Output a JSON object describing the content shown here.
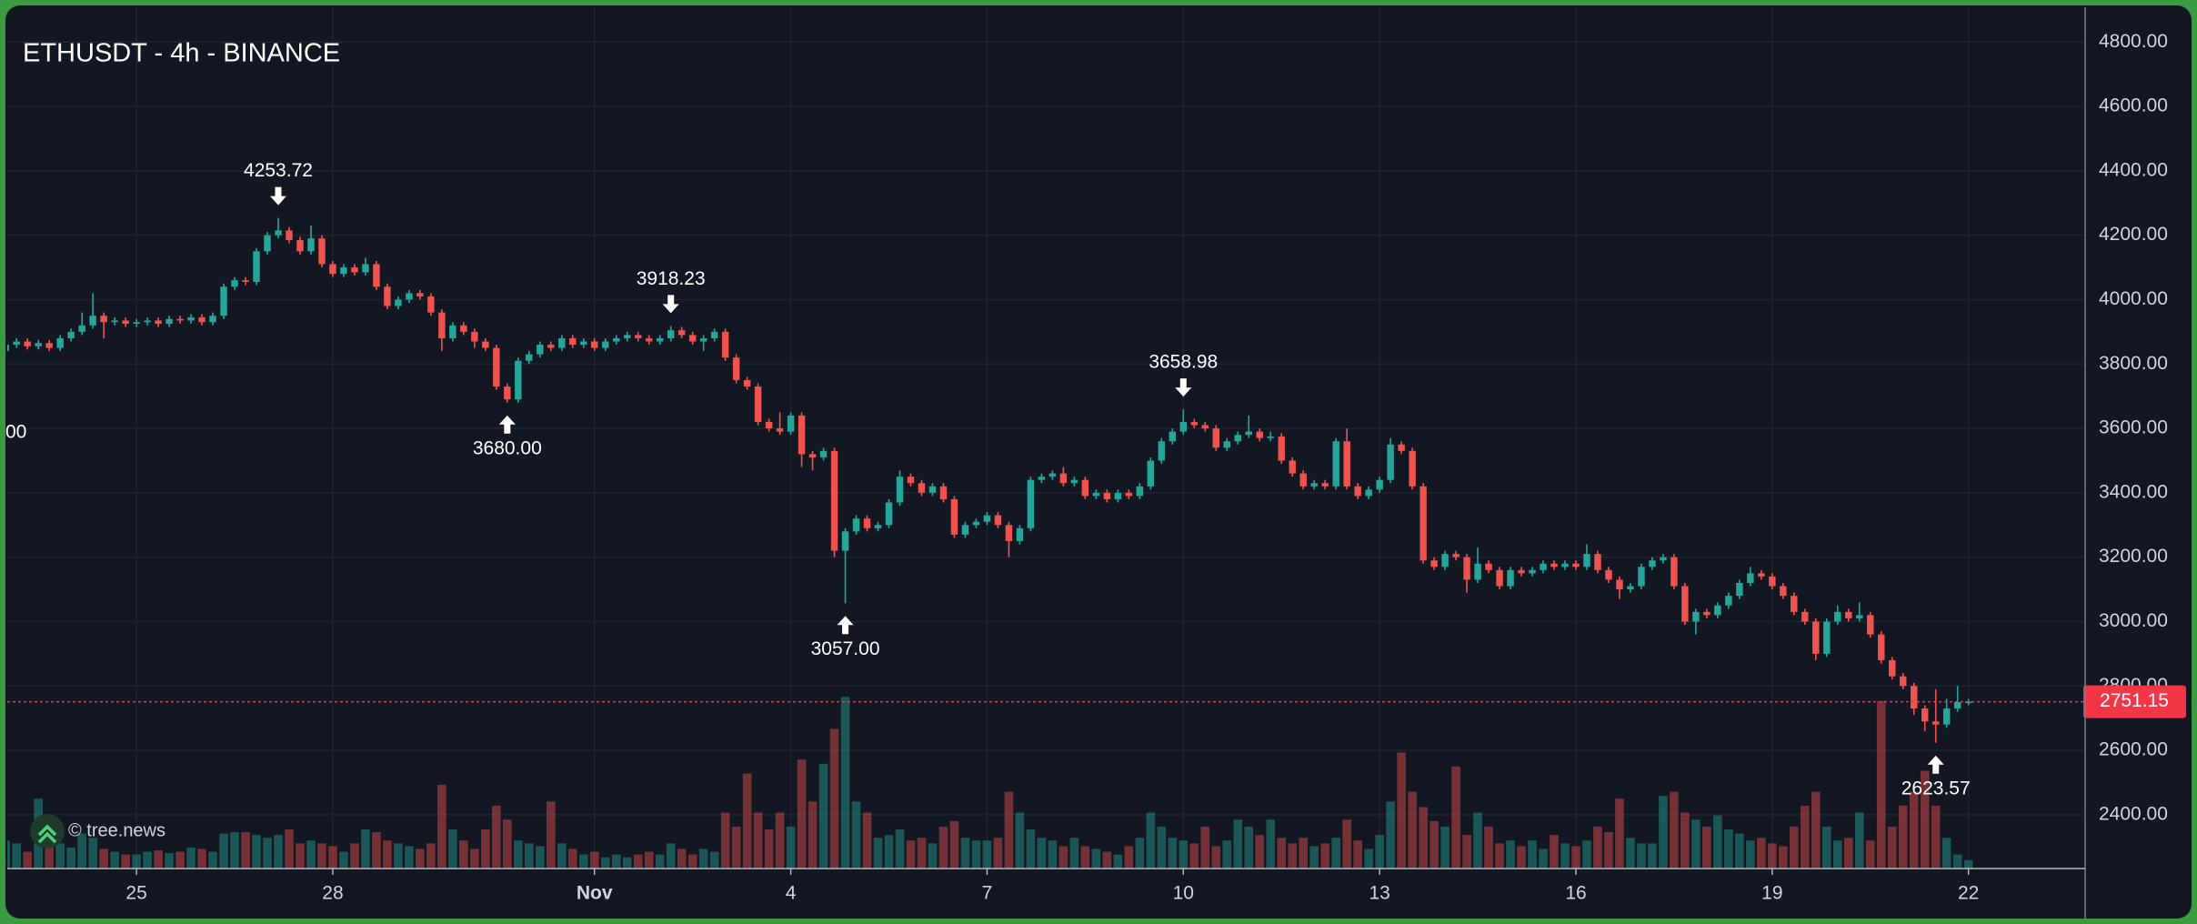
{
  "chart_data": {
    "type": "candlestick",
    "title": "ETHUSDT - 4h - BINANCE",
    "watermark": "© tree.news",
    "edge_label": "00",
    "up_color": "#26a69a",
    "down_color": "#ef5350",
    "grid": true,
    "xlim": [
      0.15,
      190.7
    ],
    "ylim": [
      2233,
      4908
    ],
    "vlim": [
      0,
      125
    ],
    "xticks": [
      {
        "value": 12,
        "label": "25"
      },
      {
        "value": 30,
        "label": "28"
      },
      {
        "value": 54,
        "label": "Nov"
      },
      {
        "value": 72,
        "label": "4"
      },
      {
        "value": 90,
        "label": "7"
      },
      {
        "value": 108,
        "label": "10"
      },
      {
        "value": 126,
        "label": "13"
      },
      {
        "value": 144,
        "label": "16"
      },
      {
        "value": 162,
        "label": "19"
      },
      {
        "value": 180,
        "label": "22"
      }
    ],
    "yticks": [
      {
        "value": 2400,
        "label": "2400.00"
      },
      {
        "value": 2600,
        "label": "2600.00"
      },
      {
        "value": 2800,
        "label": "2800.00"
      },
      {
        "value": 3000,
        "label": "3000.00"
      },
      {
        "value": 3200,
        "label": "3200.00"
      },
      {
        "value": 3400,
        "label": "3400.00"
      },
      {
        "value": 3600,
        "label": "3600.00"
      },
      {
        "value": 3800,
        "label": "3800.00"
      },
      {
        "value": 4000,
        "label": "4000.00"
      },
      {
        "value": 4200,
        "label": "4200.00"
      },
      {
        "value": 4400,
        "label": "4400.00"
      },
      {
        "value": 4600,
        "label": "4600.00"
      },
      {
        "value": 4800,
        "label": "4800.00"
      }
    ],
    "last_price": 2751.15,
    "last_price_color": "#f23645",
    "annotations": [
      {
        "x": 25,
        "value": 4253.72,
        "label": "4253.72",
        "side": "above"
      },
      {
        "x": 46,
        "value": 3680,
        "label": "3680.00",
        "side": "below"
      },
      {
        "x": 61,
        "value": 3918.23,
        "label": "3918.23",
        "side": "above"
      },
      {
        "x": 77,
        "value": 3057,
        "label": "3057.00",
        "side": "below"
      },
      {
        "x": 108,
        "value": 3658.98,
        "label": "3658.98",
        "side": "above"
      },
      {
        "x": 177,
        "value": 2623.57,
        "label": "2623.57",
        "side": "below"
      }
    ],
    "open": [
      3840,
      3860,
      3870,
      3855,
      3865,
      3850,
      3880,
      3900,
      3920,
      3950,
      3930,
      3935,
      3925,
      3930,
      3935,
      3925,
      3940,
      3935,
      3945,
      3930,
      3950,
      4040,
      4060,
      4055,
      4150,
      4200,
      4215,
      4185,
      4150,
      4190,
      4110,
      4080,
      4100,
      4085,
      4110,
      4040,
      3980,
      4000,
      4020,
      4010,
      3960,
      3880,
      3920,
      3900,
      3870,
      3850,
      3730,
      3690,
      3810,
      3830,
      3860,
      3850,
      3880,
      3860,
      3870,
      3850,
      3870,
      3880,
      3890,
      3880,
      3870,
      3880,
      3905,
      3890,
      3870,
      3880,
      3900,
      3820,
      3750,
      3730,
      3620,
      3600,
      3590,
      3640,
      3520,
      3510,
      3530,
      3220,
      3280,
      3320,
      3290,
      3300,
      3370,
      3450,
      3430,
      3400,
      3420,
      3380,
      3270,
      3300,
      3310,
      3330,
      3300,
      3250,
      3290,
      3440,
      3450,
      3460,
      3430,
      3440,
      3390,
      3400,
      3380,
      3400,
      3390,
      3420,
      3500,
      3560,
      3590,
      3620,
      3610,
      3600,
      3540,
      3560,
      3580,
      3590,
      3570,
      3575,
      3500,
      3460,
      3420,
      3430,
      3420,
      3560,
      3420,
      3390,
      3410,
      3440,
      3550,
      3530,
      3420,
      3190,
      3170,
      3210,
      3200,
      3130,
      3180,
      3160,
      3110,
      3160,
      3150,
      3160,
      3180,
      3170,
      3180,
      3170,
      3210,
      3160,
      3130,
      3100,
      3110,
      3170,
      3190,
      3200,
      3110,
      3000,
      3030,
      3020,
      3050,
      3080,
      3120,
      3150,
      3140,
      3110,
      3080,
      3030,
      3000,
      2900,
      3000,
      3030,
      3010,
      3020,
      2960,
      2880,
      2830,
      2800,
      2730,
      2690,
      2680,
      2730,
      2750
    ],
    "high": [
      3875,
      3880,
      3880,
      3875,
      3875,
      3890,
      3910,
      3960,
      4020,
      3960,
      3945,
      3945,
      3940,
      3945,
      3945,
      3950,
      3950,
      3955,
      3955,
      3960,
      4050,
      4070,
      4070,
      4160,
      4210,
      4253.72,
      4225,
      4195,
      4230,
      4200,
      4120,
      4110,
      4110,
      4130,
      4120,
      4050,
      4010,
      4030,
      4030,
      4020,
      3970,
      3930,
      3930,
      3910,
      3880,
      3860,
      3740,
      3820,
      3840,
      3870,
      3870,
      3890,
      3890,
      3880,
      3880,
      3880,
      3890,
      3900,
      3900,
      3890,
      3890,
      3918.23,
      3915,
      3900,
      3890,
      3910,
      3910,
      3830,
      3760,
      3740,
      3630,
      3650,
      3650,
      3650,
      3530,
      3540,
      3540,
      3290,
      3330,
      3330,
      3310,
      3380,
      3470,
      3460,
      3440,
      3430,
      3430,
      3390,
      3310,
      3320,
      3340,
      3340,
      3310,
      3300,
      3450,
      3460,
      3470,
      3480,
      3450,
      3450,
      3410,
      3410,
      3410,
      3410,
      3430,
      3510,
      3570,
      3600,
      3658.98,
      3630,
      3620,
      3610,
      3570,
      3590,
      3640,
      3600,
      3590,
      3585,
      3510,
      3470,
      3440,
      3440,
      3570,
      3600,
      3430,
      3420,
      3450,
      3570,
      3560,
      3540,
      3430,
      3200,
      3220,
      3220,
      3210,
      3230,
      3190,
      3170,
      3170,
      3170,
      3170,
      3190,
      3190,
      3190,
      3190,
      3240,
      3220,
      3170,
      3140,
      3120,
      3180,
      3200,
      3210,
      3210,
      3120,
      3040,
      3040,
      3060,
      3090,
      3130,
      3170,
      3160,
      3150,
      3120,
      3090,
      3040,
      3010,
      3010,
      3050,
      3040,
      3060,
      3030,
      2970,
      2890,
      2840,
      2810,
      2740,
      2790,
      2760,
      2800,
      2760
    ],
    "low": [
      3820,
      3850,
      3845,
      3845,
      3840,
      3840,
      3870,
      3890,
      3910,
      3880,
      3920,
      3915,
      3915,
      3920,
      3915,
      3915,
      3925,
      3925,
      3920,
      3920,
      3940,
      4030,
      4045,
      4045,
      4140,
      4190,
      4175,
      4140,
      4140,
      4100,
      4070,
      4070,
      4075,
      4075,
      4030,
      3970,
      3970,
      3990,
      4000,
      3950,
      3840,
      3870,
      3890,
      3850,
      3840,
      3720,
      3680,
      3680,
      3800,
      3820,
      3840,
      3840,
      3850,
      3850,
      3840,
      3840,
      3860,
      3870,
      3870,
      3860,
      3860,
      3870,
      3880,
      3860,
      3840,
      3870,
      3810,
      3740,
      3720,
      3610,
      3590,
      3580,
      3580,
      3480,
      3470,
      3500,
      3200,
      3057,
      3270,
      3280,
      3280,
      3290,
      3360,
      3420,
      3390,
      3390,
      3370,
      3260,
      3260,
      3290,
      3300,
      3290,
      3200,
      3240,
      3280,
      3430,
      3440,
      3420,
      3420,
      3380,
      3380,
      3370,
      3370,
      3380,
      3380,
      3410,
      3490,
      3550,
      3580,
      3600,
      3590,
      3530,
      3530,
      3550,
      3570,
      3560,
      3560,
      3490,
      3450,
      3410,
      3410,
      3410,
      3410,
      3410,
      3380,
      3380,
      3400,
      3430,
      3520,
      3410,
      3180,
      3160,
      3160,
      3190,
      3090,
      3120,
      3150,
      3100,
      3100,
      3140,
      3140,
      3150,
      3160,
      3160,
      3160,
      3160,
      3150,
      3120,
      3070,
      3090,
      3100,
      3160,
      3180,
      3100,
      2990,
      2960,
      3010,
      3010,
      3040,
      3070,
      3110,
      3130,
      3100,
      3070,
      3020,
      2990,
      2880,
      2890,
      2990,
      3000,
      3000,
      2950,
      2870,
      2820,
      2790,
      2710,
      2660,
      2623.57,
      2670,
      2720,
      2740
    ],
    "close": [
      3860,
      3870,
      3855,
      3865,
      3850,
      3880,
      3900,
      3920,
      3950,
      3930,
      3935,
      3925,
      3930,
      3935,
      3925,
      3940,
      3935,
      3945,
      3930,
      3950,
      4040,
      4060,
      4055,
      4150,
      4200,
      4215,
      4185,
      4150,
      4190,
      4110,
      4080,
      4100,
      4085,
      4110,
      4040,
      3980,
      4000,
      4020,
      4010,
      3960,
      3880,
      3920,
      3900,
      3870,
      3850,
      3730,
      3690,
      3810,
      3830,
      3860,
      3850,
      3880,
      3860,
      3870,
      3850,
      3870,
      3880,
      3890,
      3880,
      3870,
      3880,
      3905,
      3890,
      3870,
      3880,
      3900,
      3820,
      3750,
      3730,
      3620,
      3600,
      3590,
      3640,
      3520,
      3510,
      3530,
      3220,
      3280,
      3320,
      3290,
      3300,
      3370,
      3450,
      3430,
      3400,
      3420,
      3380,
      3270,
      3300,
      3310,
      3330,
      3300,
      3250,
      3290,
      3440,
      3450,
      3460,
      3430,
      3440,
      3390,
      3400,
      3380,
      3400,
      3390,
      3420,
      3500,
      3560,
      3590,
      3620,
      3610,
      3600,
      3540,
      3560,
      3580,
      3590,
      3570,
      3575,
      3500,
      3460,
      3420,
      3430,
      3420,
      3560,
      3420,
      3390,
      3410,
      3440,
      3550,
      3530,
      3420,
      3190,
      3170,
      3210,
      3200,
      3130,
      3180,
      3160,
      3110,
      3160,
      3150,
      3160,
      3180,
      3170,
      3180,
      3170,
      3210,
      3160,
      3130,
      3100,
      3110,
      3170,
      3190,
      3200,
      3110,
      3000,
      3030,
      3020,
      3050,
      3080,
      3120,
      3150,
      3140,
      3110,
      3080,
      3030,
      3000,
      2900,
      3000,
      3030,
      3010,
      3020,
      2960,
      2880,
      2830,
      2800,
      2730,
      2690,
      2680,
      2730,
      2750,
      2751.15
    ],
    "volume": [
      20,
      18,
      12,
      50,
      22,
      18,
      15,
      25,
      22,
      14,
      12,
      10,
      10,
      12,
      13,
      11,
      12,
      15,
      14,
      12,
      25,
      26,
      26,
      24,
      22,
      24,
      28,
      18,
      20,
      18,
      16,
      12,
      18,
      28,
      26,
      20,
      18,
      16,
      14,
      18,
      60,
      28,
      20,
      14,
      28,
      45,
      35,
      20,
      18,
      16,
      48,
      18,
      14,
      10,
      12,
      8,
      10,
      8,
      10,
      12,
      10,
      18,
      14,
      10,
      14,
      12,
      40,
      30,
      68,
      40,
      28,
      40,
      30,
      78,
      48,
      75,
      100,
      123,
      48,
      40,
      22,
      24,
      28,
      20,
      22,
      18,
      30,
      34,
      22,
      20,
      20,
      22,
      55,
      40,
      28,
      22,
      20,
      16,
      22,
      16,
      14,
      12,
      10,
      16,
      22,
      40,
      30,
      22,
      20,
      18,
      30,
      16,
      20,
      35,
      30,
      24,
      35,
      22,
      18,
      22,
      16,
      18,
      22,
      35,
      20,
      14,
      24,
      48,
      83,
      55,
      44,
      34,
      30,
      73,
      24,
      40,
      30,
      18,
      20,
      16,
      20,
      14,
      24,
      18,
      16,
      20,
      30,
      26,
      50,
      22,
      18,
      18,
      52,
      55,
      40,
      35,
      30,
      38,
      28,
      25,
      20,
      22,
      18,
      16,
      30,
      45,
      55,
      30,
      20,
      22,
      40,
      20,
      120,
      30,
      45,
      55,
      70,
      45,
      22,
      10,
      6
    ]
  }
}
